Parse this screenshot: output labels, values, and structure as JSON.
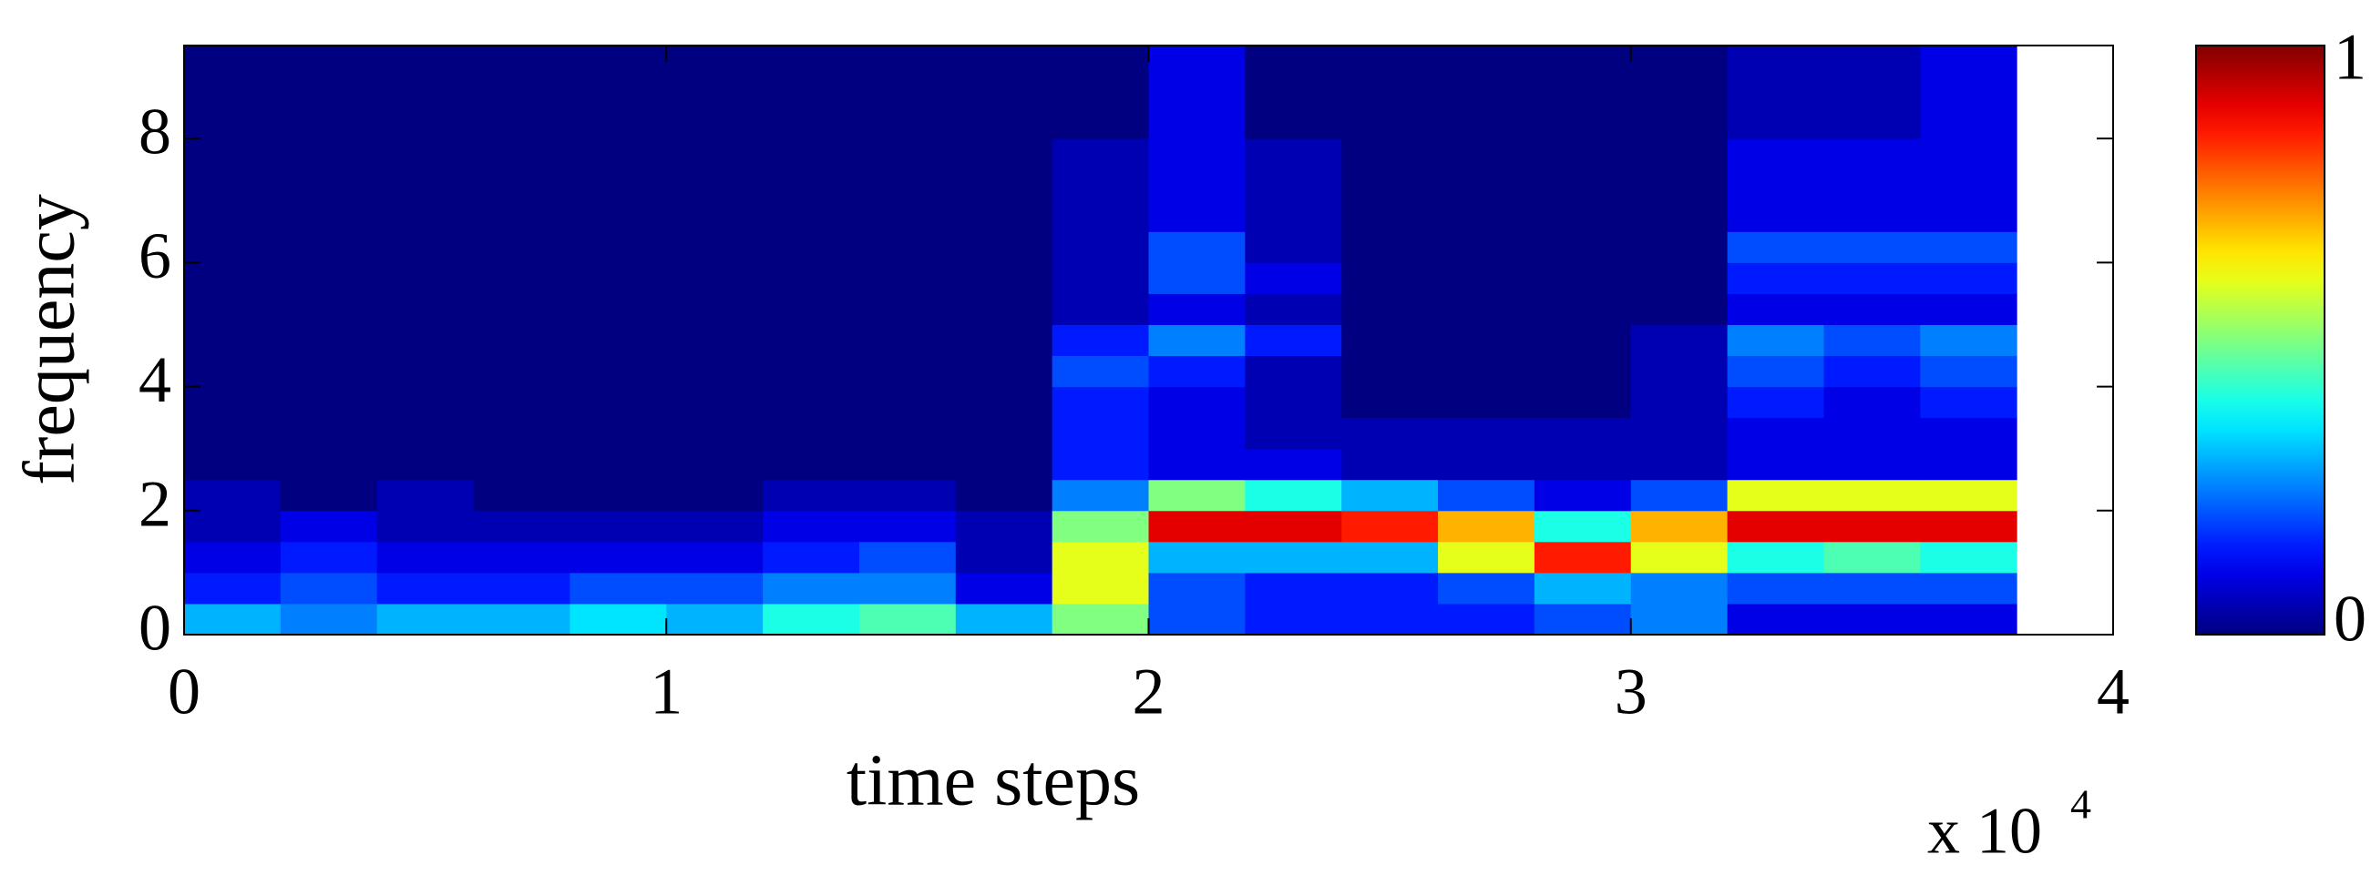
{
  "chart_data": {
    "type": "heatmap",
    "x_label": "time steps",
    "y_label": "frequency",
    "x_multiplier": "x 10",
    "x_multiplier_exp": "4",
    "xlim": [
      0,
      40000
    ],
    "xticks": [
      0,
      {
        "value": 10000,
        "label": "1"
      },
      {
        "value": 20000,
        "label": "2"
      },
      {
        "value": 30000,
        "label": "3"
      },
      {
        "value": 40000,
        "label": "4"
      }
    ],
    "ylim": [
      0,
      9.5
    ],
    "yticks": [
      0,
      2,
      4,
      6,
      8
    ],
    "colormap": "jet",
    "clim": [
      0,
      1
    ],
    "colorbar_ticks": [
      0,
      1
    ],
    "xbins": [
      0,
      2000,
      4000,
      6000,
      8000,
      10000,
      12000,
      14000,
      16000,
      18000,
      20000,
      22000,
      24000,
      26000,
      28000,
      30000,
      32000,
      34000,
      36000,
      38000
    ],
    "ybins": [
      0,
      0.5,
      1,
      1.5,
      2,
      2.5,
      3,
      3.5,
      4,
      4.5,
      5,
      5.5,
      6,
      6.5,
      7,
      7.5,
      8,
      8.5,
      9,
      9.5
    ],
    "z": [
      [
        0.3,
        0.25,
        0.3,
        0.3,
        0.35,
        0.3,
        0.4,
        0.45,
        0.3,
        0.5,
        0.2,
        0.15,
        0.15,
        0.15,
        0.2,
        0.25,
        0.1,
        0.1,
        0.1
      ],
      [
        0.15,
        0.2,
        0.15,
        0.15,
        0.2,
        0.2,
        0.25,
        0.25,
        0.1,
        0.6,
        0.2,
        0.15,
        0.15,
        0.2,
        0.3,
        0.25,
        0.2,
        0.2,
        0.2
      ],
      [
        0.1,
        0.15,
        0.1,
        0.1,
        0.1,
        0.1,
        0.15,
        0.2,
        0.05,
        0.6,
        0.3,
        0.3,
        0.3,
        0.6,
        0.85,
        0.6,
        0.4,
        0.45,
        0.4
      ],
      [
        0.05,
        0.1,
        0.05,
        0.05,
        0.05,
        0.05,
        0.1,
        0.1,
        0.05,
        0.5,
        0.9,
        0.9,
        0.85,
        0.7,
        0.4,
        0.7,
        0.9,
        0.9,
        0.9
      ],
      [
        0.05,
        0,
        0.05,
        0,
        0,
        0,
        0.05,
        0.05,
        0,
        0.25,
        0.5,
        0.4,
        0.3,
        0.2,
        0.1,
        0.2,
        0.6,
        0.6,
        0.6
      ],
      [
        0,
        0,
        0,
        0,
        0,
        0,
        0,
        0,
        0,
        0.15,
        0.1,
        0.1,
        0.05,
        0.05,
        0.05,
        0.05,
        0.1,
        0.1,
        0.1
      ],
      [
        0,
        0,
        0,
        0,
        0,
        0,
        0,
        0,
        0,
        0.15,
        0.1,
        0.05,
        0.05,
        0.05,
        0.05,
        0.05,
        0.1,
        0.1,
        0.1
      ],
      [
        0,
        0,
        0,
        0,
        0,
        0,
        0,
        0,
        0,
        0.15,
        0.1,
        0.05,
        0,
        0,
        0,
        0.05,
        0.15,
        0.1,
        0.15
      ],
      [
        0,
        0,
        0,
        0,
        0,
        0,
        0,
        0,
        0,
        0.2,
        0.15,
        0.05,
        0,
        0,
        0,
        0.05,
        0.2,
        0.15,
        0.2
      ],
      [
        0,
        0,
        0,
        0,
        0,
        0,
        0,
        0,
        0,
        0.15,
        0.25,
        0.15,
        0,
        0,
        0,
        0.05,
        0.25,
        0.2,
        0.25
      ],
      [
        0,
        0,
        0,
        0,
        0,
        0,
        0,
        0,
        0,
        0.05,
        0.1,
        0.05,
        0,
        0,
        0,
        0,
        0.1,
        0.1,
        0.1
      ],
      [
        0,
        0,
        0,
        0,
        0,
        0,
        0,
        0,
        0,
        0.05,
        0.2,
        0.1,
        0,
        0,
        0,
        0,
        0.15,
        0.15,
        0.15
      ],
      [
        0,
        0,
        0,
        0,
        0,
        0,
        0,
        0,
        0,
        0.05,
        0.2,
        0.05,
        0,
        0,
        0,
        0,
        0.2,
        0.2,
        0.2
      ],
      [
        0,
        0,
        0,
        0,
        0,
        0,
        0,
        0,
        0,
        0.05,
        0.1,
        0.05,
        0,
        0,
        0,
        0,
        0.1,
        0.1,
        0.1
      ],
      [
        0,
        0,
        0,
        0,
        0,
        0,
        0,
        0,
        0,
        0.05,
        0.1,
        0.05,
        0,
        0,
        0,
        0,
        0.1,
        0.1,
        0.1
      ],
      [
        0,
        0,
        0,
        0,
        0,
        0,
        0,
        0,
        0,
        0.05,
        0.1,
        0.05,
        0,
        0,
        0,
        0,
        0.1,
        0.1,
        0.1
      ],
      [
        0,
        0,
        0,
        0,
        0,
        0,
        0,
        0,
        0,
        0,
        0.1,
        0,
        0,
        0,
        0,
        0,
        0.05,
        0.05,
        0.1
      ],
      [
        0,
        0,
        0,
        0,
        0,
        0,
        0,
        0,
        0,
        0,
        0.1,
        0,
        0,
        0,
        0,
        0,
        0.05,
        0.05,
        0.1
      ],
      [
        0,
        0,
        0,
        0,
        0,
        0,
        0,
        0,
        0,
        0,
        0.1,
        0,
        0,
        0,
        0,
        0,
        0.05,
        0.05,
        0.1
      ]
    ]
  }
}
